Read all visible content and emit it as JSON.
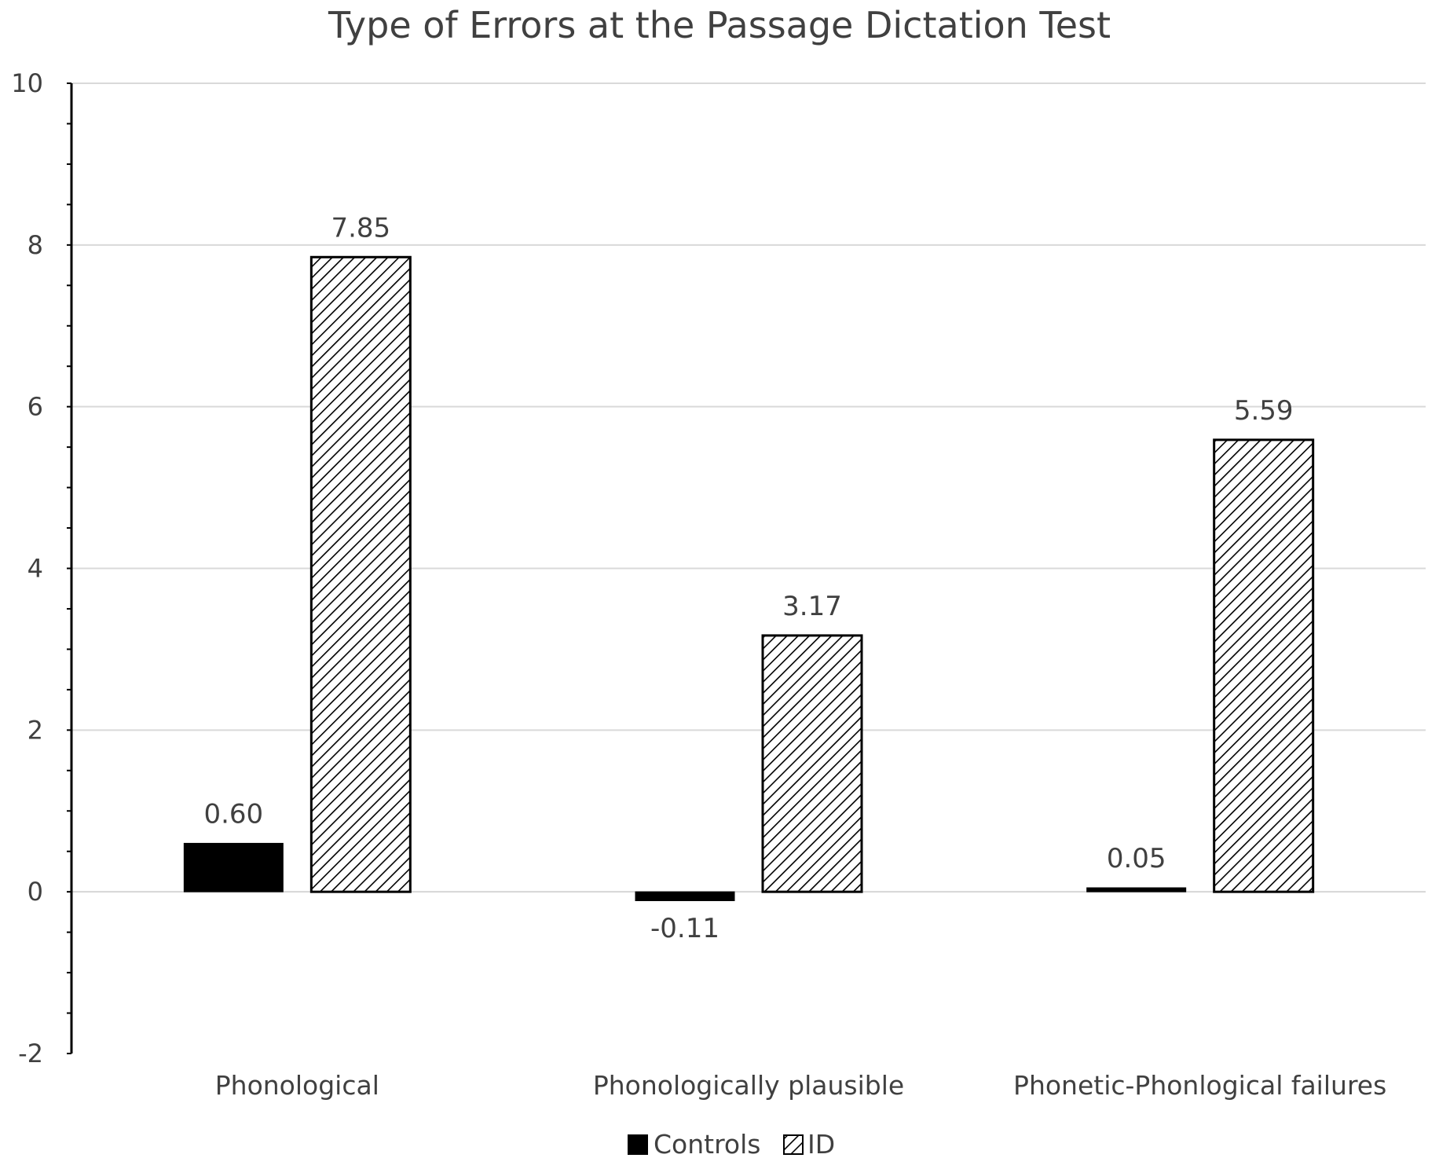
{
  "chart_data": {
    "type": "bar",
    "title": "Type of Errors at the Passage Dictation Test",
    "xlabel": "",
    "ylabel": "",
    "ylim": [
      -2,
      10
    ],
    "y_ticks": [
      "-2",
      "0",
      "2",
      "4",
      "6",
      "8",
      "10"
    ],
    "categories": [
      "Phonological",
      "Phonologically plausible",
      "Phonetic-Phonlogical failures"
    ],
    "series": [
      {
        "name": "Controls",
        "values": [
          0.6,
          -0.11,
          0.05
        ],
        "labels": [
          "0.60",
          "-0.11",
          "0.05"
        ],
        "color": "#000000",
        "fill": "solid"
      },
      {
        "name": "ID",
        "values": [
          7.85,
          3.17,
          5.59
        ],
        "labels": [
          "7.85",
          "3.17",
          "5.59"
        ],
        "color": "#000000",
        "fill": "diagonal-hatch"
      }
    ],
    "grid": true,
    "legend_position": "bottom",
    "colors": {
      "text": "#404040",
      "grid": "#d9d9d9",
      "axis": "#000000"
    }
  }
}
